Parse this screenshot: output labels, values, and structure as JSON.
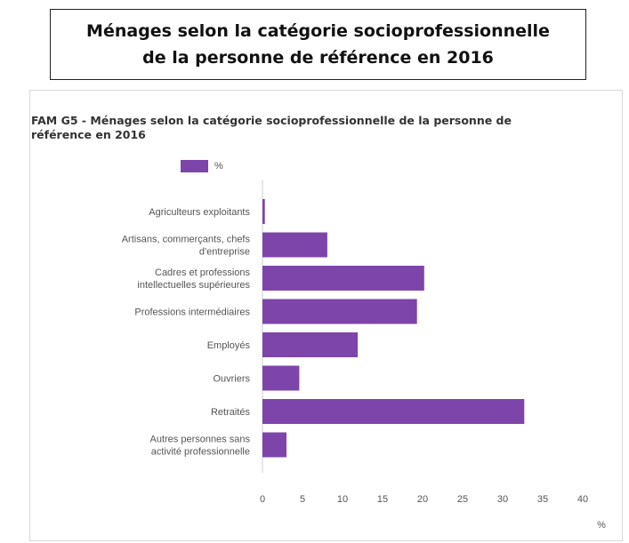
{
  "header": {
    "title_lines": [
      "Ménages selon la catégorie socioprofessionnelle",
      "de la personne de référence en 2016"
    ]
  },
  "chart_data": {
    "type": "bar",
    "orientation": "horizontal",
    "title_lines": [
      "FAM G5 - Ménages selon la catégorie socioprofessionnelle de la personne de",
      "référence en 2016"
    ],
    "legend": [
      "%"
    ],
    "legend_position": "top-left",
    "categories": [
      [
        "Agriculteurs exploitants"
      ],
      [
        "Artisans, commerçants, chefs",
        "d'entreprise"
      ],
      [
        "Cadres et professions",
        "intellectuelles supérieures"
      ],
      [
        "Professions intermédiaires"
      ],
      [
        "Employés"
      ],
      [
        "Ouvriers"
      ],
      [
        "Retraités"
      ],
      [
        "Autres personnes sans",
        "activité professionnelle"
      ]
    ],
    "series": [
      {
        "name": "%",
        "values": [
          0.3,
          8.1,
          20.2,
          19.3,
          11.9,
          4.6,
          32.7,
          3.0
        ]
      }
    ],
    "xticks": [
      "0",
      "5",
      "10",
      "15",
      "20",
      "25",
      "30",
      "35",
      "40"
    ],
    "xlim": [
      0,
      40
    ],
    "xlabel": "%",
    "grid": false,
    "bar_color": "#7d45aa"
  }
}
